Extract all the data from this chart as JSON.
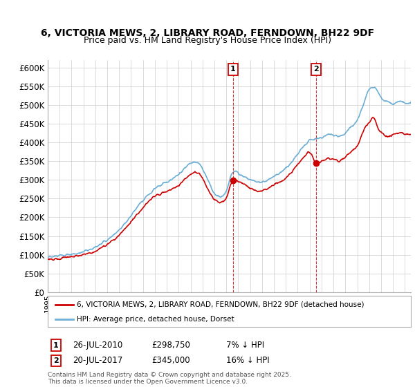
{
  "title_line1": "6, VICTORIA MEWS, 2, LIBRARY ROAD, FERNDOWN, BH22 9DF",
  "title_line2": "Price paid vs. HM Land Registry's House Price Index (HPI)",
  "ylim": [
    0,
    620000
  ],
  "yticks": [
    0,
    50000,
    100000,
    150000,
    200000,
    250000,
    300000,
    350000,
    400000,
    450000,
    500000,
    550000,
    600000
  ],
  "hpi_color": "#6baed6",
  "price_color": "#cc0000",
  "bg_color": "#ffffff",
  "purchase1_date": 2010.57,
  "purchase1_price": 298750,
  "purchase2_date": 2017.55,
  "purchase2_price": 345000,
  "legend_price_label": "6, VICTORIA MEWS, 2, LIBRARY ROAD, FERNDOWN, BH22 9DF (detached house)",
  "legend_hpi_label": "HPI: Average price, detached house, Dorset",
  "footer_text": "Contains HM Land Registry data © Crown copyright and database right 2025.\nThis data is licensed under the Open Government Licence v3.0.",
  "xstart": 1995,
  "xend": 2025.5
}
